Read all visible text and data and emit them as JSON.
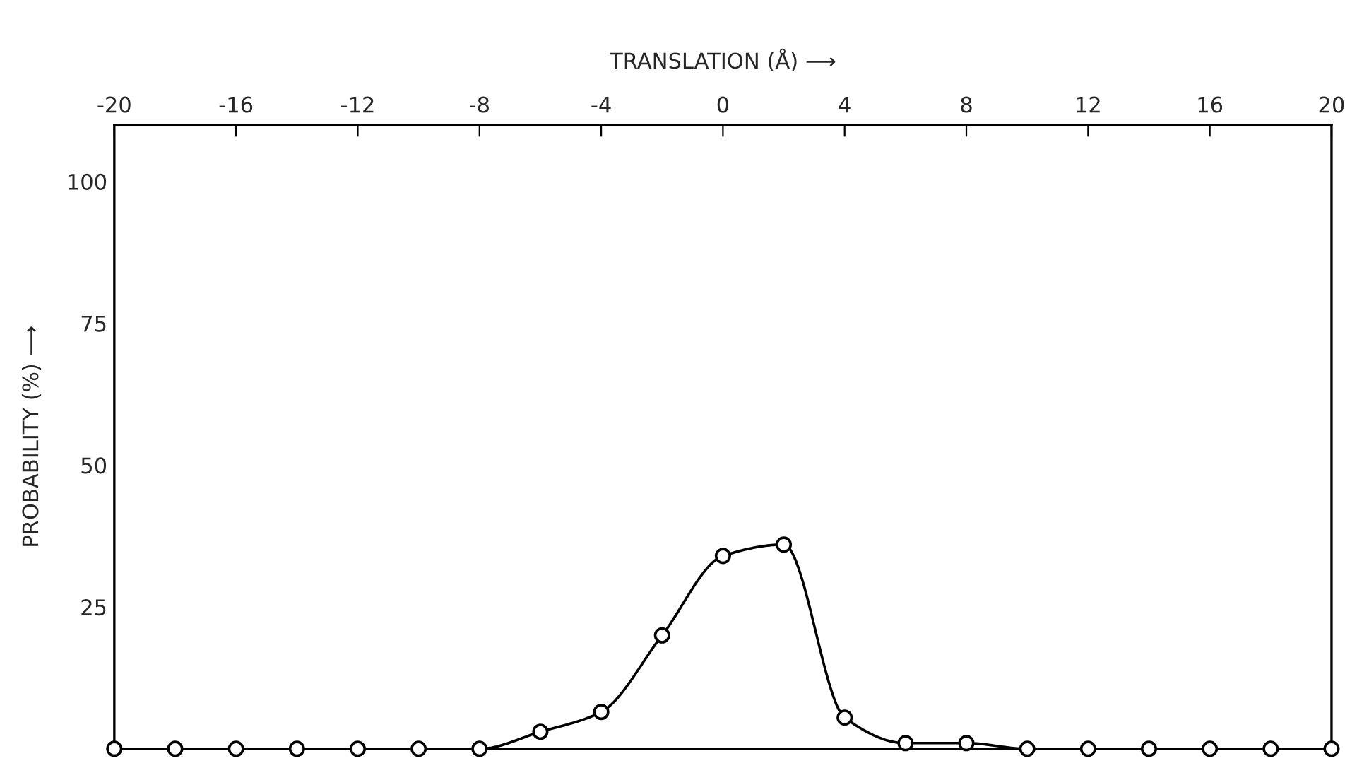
{
  "chart_data": {
    "type": "line",
    "xlabel": "TRANSLATION (Å) ⟶",
    "ylabel": "PROBABILITY (%) ⟶",
    "x": [
      -20,
      -18,
      -16,
      -14,
      -12,
      -10,
      -8,
      -6,
      -4,
      -2,
      0,
      2,
      4,
      6,
      8,
      10,
      12,
      14,
      16,
      18,
      20
    ],
    "series": [
      {
        "color": "#000000",
        "values": [
          0,
          0,
          0,
          0,
          0,
          0,
          0,
          3,
          6.5,
          20,
          34,
          36,
          5.5,
          1,
          1,
          0,
          0,
          0,
          0,
          0,
          0
        ]
      }
    ],
    "xlim": [
      -20,
      20
    ],
    "xticks": [
      -20,
      -16,
      -12,
      -8,
      -4,
      0,
      4,
      8,
      12,
      16,
      20
    ],
    "ylim": [
      0,
      110
    ],
    "yticks": [
      25,
      50,
      75,
      100
    ],
    "marker": "circle",
    "line_style": "solid",
    "grid": false,
    "legend": false
  }
}
